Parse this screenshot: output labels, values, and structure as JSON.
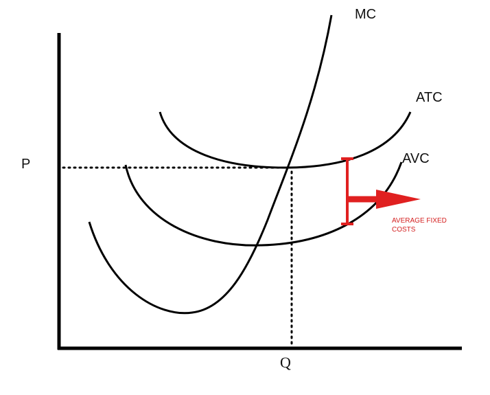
{
  "labels": {
    "mc": "MC",
    "atc": "ATC",
    "avc": "AVC",
    "p": "P",
    "q": "Q"
  },
  "annotation": {
    "lines": [
      "AVERAGE FIXED",
      "COSTS"
    ]
  }
}
